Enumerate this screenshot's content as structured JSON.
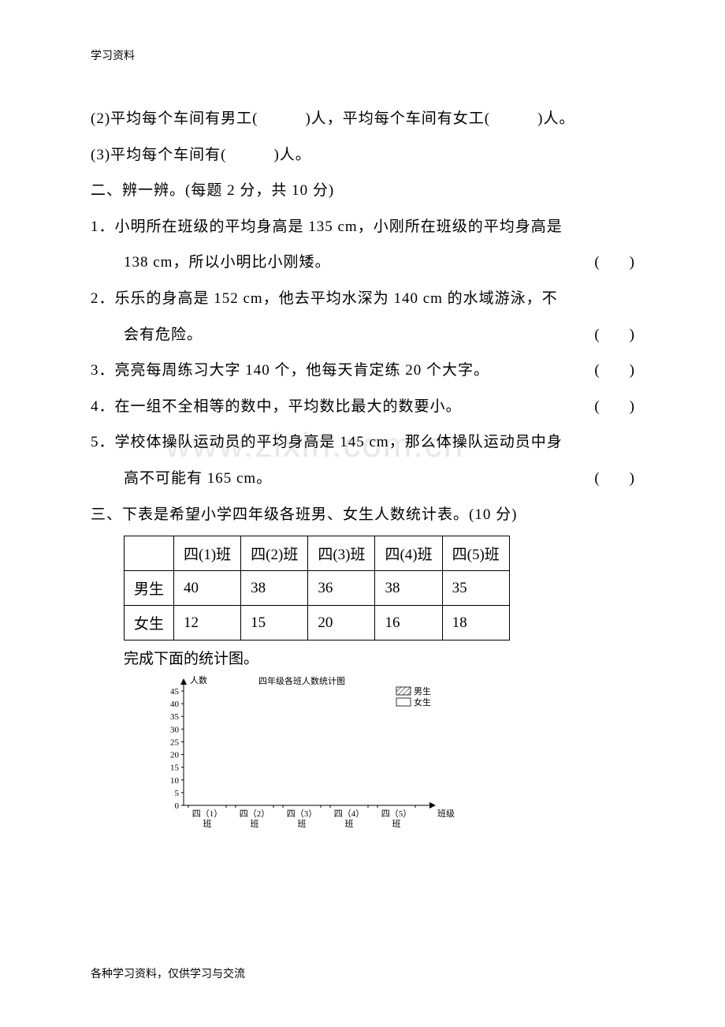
{
  "header": "学习资料",
  "footer": "各种学习资料，仅供学习与交流",
  "watermark": "www.zixin.com.cn",
  "q2": "(2)平均每个车间有男工(　　　)人，平均每个车间有女工(　　　)人。",
  "q3": "(3)平均每个车间有(　　　)人。",
  "section2": "二、辨一辨。(每题 2 分，共 10 分)",
  "s2q1a": "1．小明所在班级的平均身高是 135 cm，小刚所在班级的平均身高是",
  "s2q1b": "138 cm，所以小明比小刚矮。",
  "s2q2a": "2．乐乐的身高是 152 cm，他去平均水深为 140 cm 的水域游泳，不",
  "s2q2b": "会有危险。",
  "s2q3": "3．亮亮每周练习大字 140 个，他每天肯定练 20 个大字。",
  "s2q4": "4．在一组不全相等的数中，平均数比最大的数要小。",
  "s2q5a": "5．学校体操队运动员的平均身高是 145 cm，那么体操队运动员中身",
  "s2q5b": "高不可能有 165 cm。",
  "paren": "(　　)",
  "section3": "三、下表是希望小学四年级各班男、女生人数统计表。(10 分)",
  "table": {
    "headers": [
      "",
      "四(1)班",
      "四(2)班",
      "四(3)班",
      "四(4)班",
      "四(5)班"
    ],
    "rows": [
      [
        "男生",
        "40",
        "38",
        "36",
        "38",
        "35"
      ],
      [
        "女生",
        "12",
        "15",
        "20",
        "16",
        "18"
      ]
    ]
  },
  "chartCaption": "完成下面的统计图。",
  "chart": {
    "title": "四年级各班人数统计图",
    "yLabel": "人数",
    "xLabel": "班级",
    "yTicks": [
      0,
      5,
      10,
      15,
      20,
      25,
      30,
      35,
      40,
      45
    ],
    "xTicksTop": [
      "四（1）",
      "四（2）",
      "四（3）",
      "四（4）",
      "四（5）"
    ],
    "xTicksBot": [
      "班",
      "班",
      "班",
      "班",
      "班"
    ],
    "legend": [
      {
        "label": "男生",
        "fill": "hatch"
      },
      {
        "label": "女生",
        "fill": "none"
      }
    ],
    "colors": {
      "axis": "#000000",
      "text": "#000000",
      "hatch": "#777777"
    },
    "fontSize": 11
  }
}
